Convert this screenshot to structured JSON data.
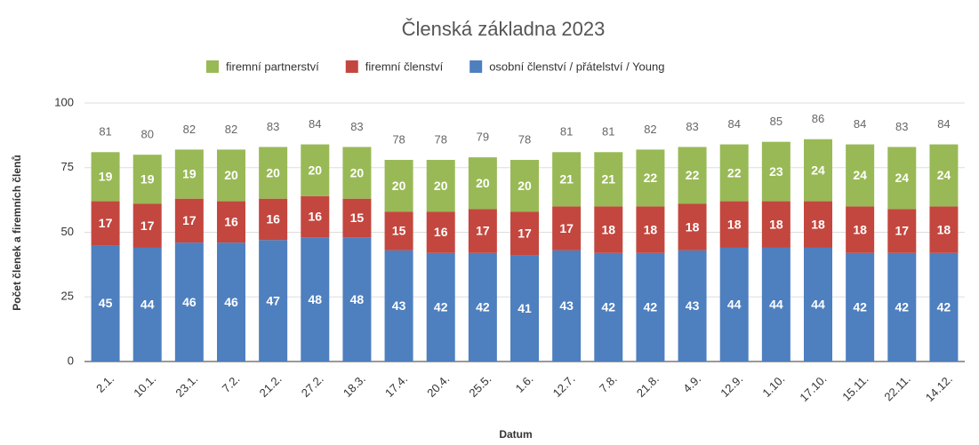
{
  "chart_data": {
    "type": "stacked_bar",
    "title": "Členská základna 2023",
    "x_label": "Datum",
    "y_label": "Počet členek a firemních členů",
    "categories": [
      "2.1.",
      "10.1.",
      "23.1.",
      "7.2.",
      "21.2.",
      "27.2.",
      "18.3.",
      "17.4.",
      "20.4.",
      "25.5.",
      "1.6.",
      "12.7.",
      "7.8.",
      "21.8.",
      "4.9.",
      "12.9.",
      "1.10.",
      "17.10.",
      "15.11.",
      "22.11.",
      "14.12."
    ],
    "series": [
      {
        "name": "firemní partnerství",
        "color": "#99b956",
        "values": [
          19,
          19,
          19,
          20,
          20,
          20,
          20,
          20,
          20,
          20,
          20,
          21,
          21,
          22,
          22,
          22,
          23,
          24,
          24,
          24,
          24
        ]
      },
      {
        "name": "firemní členství",
        "color": "#c3473f",
        "values": [
          17,
          17,
          17,
          16,
          16,
          16,
          15,
          15,
          16,
          17,
          17,
          17,
          18,
          18,
          18,
          18,
          18,
          18,
          18,
          17,
          18
        ]
      },
      {
        "name": "osobní členství / přátelství / Young",
        "color": "#4e7fbf",
        "values": [
          45,
          44,
          46,
          46,
          47,
          48,
          48,
          43,
          42,
          42,
          41,
          43,
          42,
          42,
          43,
          44,
          44,
          44,
          42,
          42,
          42
        ]
      }
    ],
    "totals": [
      81,
      80,
      82,
      82,
      83,
      84,
      83,
      78,
      78,
      79,
      78,
      81,
      81,
      82,
      83,
      84,
      85,
      86,
      84,
      83,
      84
    ],
    "ylim": [
      0,
      100
    ],
    "yticks": [
      0,
      25,
      50,
      75,
      100
    ],
    "grid": true,
    "legend": "top"
  }
}
